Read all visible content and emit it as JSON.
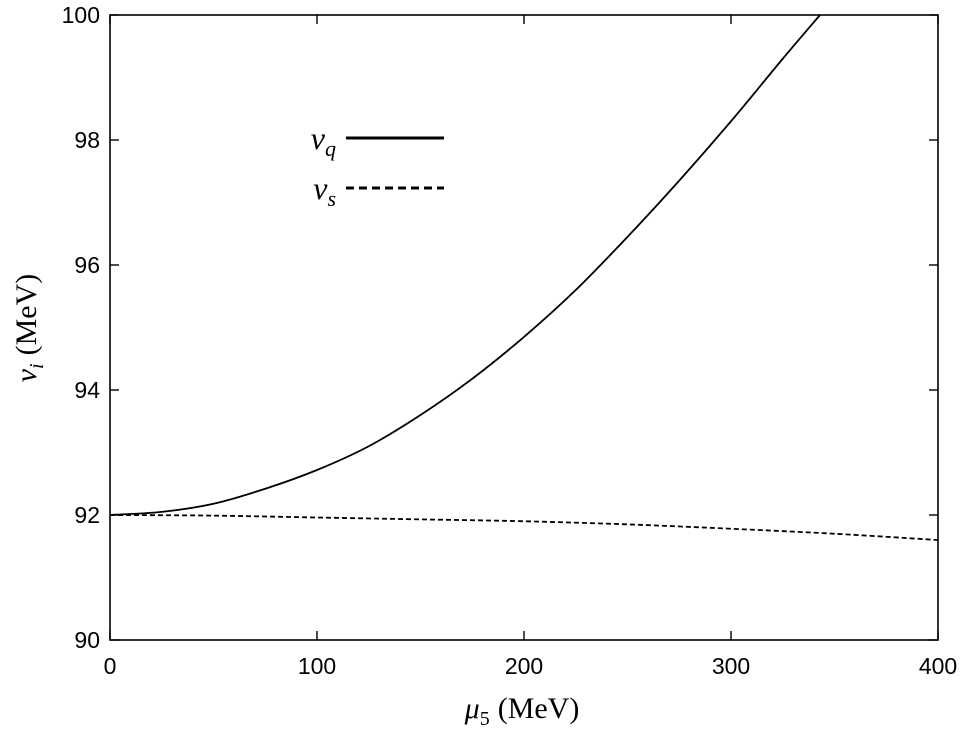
{
  "chart_data": {
    "type": "line",
    "xlabel": {
      "symbol": "μ",
      "sub": "5",
      "unit": "(MeV)"
    },
    "ylabel": {
      "symbol": "v",
      "sub": "i",
      "unit": "(MeV)"
    },
    "xlim": [
      0,
      400
    ],
    "ylim": [
      90,
      100
    ],
    "xticks": [
      "0",
      "100",
      "200",
      "300",
      "400"
    ],
    "yticks": [
      "90",
      "92",
      "94",
      "96",
      "98",
      "100"
    ],
    "grid": false,
    "legend_position": "top-left",
    "series": [
      {
        "name": "v_q",
        "label_symbol": "v",
        "label_sub": "q",
        "style": "solid",
        "color": "#000000",
        "x": [
          0,
          25,
          50,
          75,
          100,
          125,
          150,
          175,
          200,
          225,
          250,
          275,
          300,
          325,
          343
        ],
        "y": [
          92.0,
          92.05,
          92.18,
          92.42,
          92.72,
          93.1,
          93.6,
          94.18,
          94.85,
          95.6,
          96.45,
          97.35,
          98.3,
          99.3,
          100.0
        ]
      },
      {
        "name": "v_s",
        "label_symbol": "v",
        "label_sub": "s",
        "style": "dashed",
        "color": "#000000",
        "x": [
          0,
          50,
          100,
          150,
          200,
          250,
          300,
          350,
          400
        ],
        "y": [
          92.0,
          91.99,
          91.96,
          91.93,
          91.9,
          91.85,
          91.78,
          91.7,
          91.6
        ]
      }
    ]
  }
}
